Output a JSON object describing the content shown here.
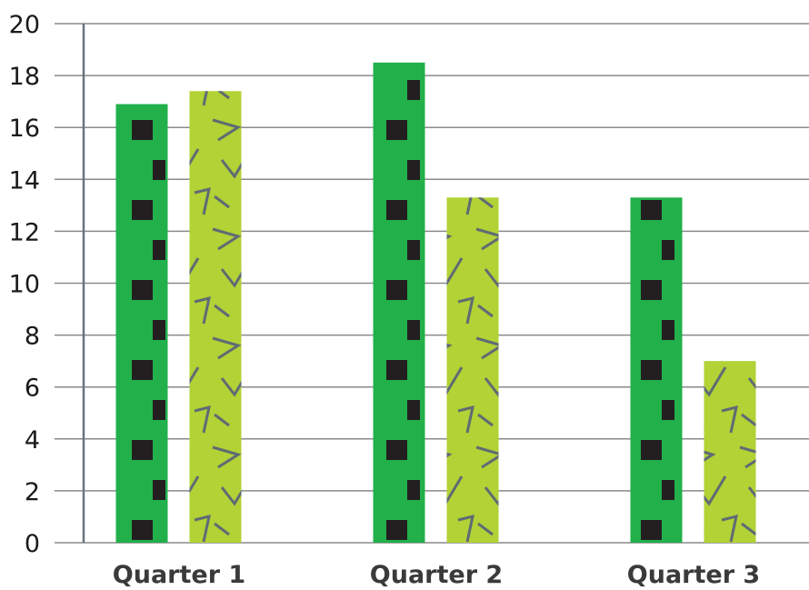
{
  "chart_data": {
    "type": "bar",
    "categories": [
      "Quarter 1",
      "Quarter 2",
      "Quarter 3"
    ],
    "series": [
      {
        "values": [
          16.9,
          18.5,
          13.3
        ],
        "color": "#22b04b",
        "pattern": "square-dots",
        "pattern_color": "#231f20"
      },
      {
        "values": [
          17.4,
          13.3,
          7.0
        ],
        "color": "#b2d235",
        "pattern": "scribbles",
        "pattern_color": "#5f6b73"
      }
    ],
    "y_ticks": [
      "0",
      "2",
      "4",
      "6",
      "8",
      "10",
      "12",
      "14",
      "16",
      "18",
      "20"
    ],
    "ylim": [
      0,
      20
    ],
    "grid": true,
    "title": "",
    "xlabel": "",
    "ylabel": ""
  }
}
